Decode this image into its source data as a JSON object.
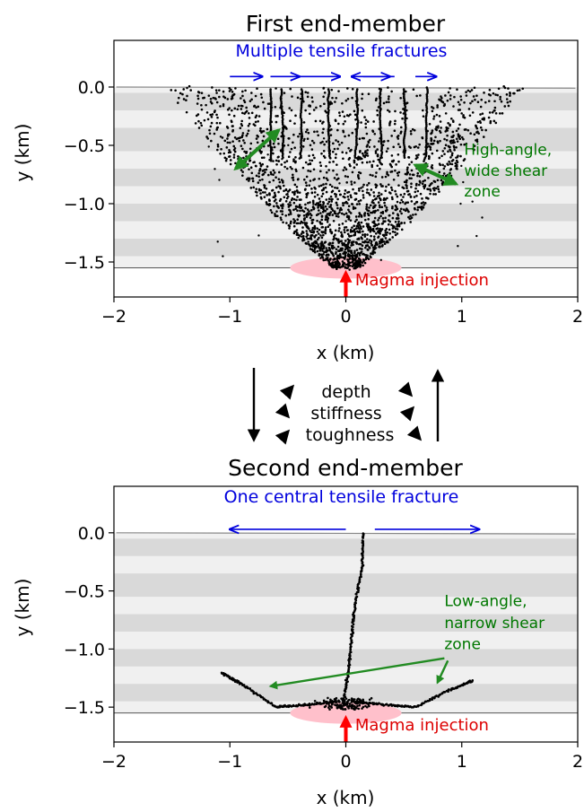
{
  "chart_data": [
    {
      "type": "scatter",
      "title": "First end-member",
      "xlabel": "x (km)",
      "ylabel": "y (km)",
      "xlim": [
        -2,
        2
      ],
      "ylim": [
        -1.8,
        0.4
      ],
      "x_ticks": [
        -2,
        -1,
        0,
        1,
        2
      ],
      "x_tick_labels": [
        "−2",
        "−1",
        "0",
        "1",
        "2"
      ],
      "y_ticks": [
        0.0,
        -0.5,
        -1.0,
        -1.5
      ],
      "y_tick_labels": [
        "0.0",
        "−0.5",
        "−1.0",
        "−1.5"
      ],
      "grid": false,
      "surface_y": 0.0,
      "base_y": -1.55,
      "layer_bands": [
        [
          -0.05,
          -0.2
        ],
        [
          -0.35,
          -0.55
        ],
        [
          -0.7,
          -0.85
        ],
        [
          -1.0,
          -1.15
        ],
        [
          -1.3,
          -1.45
        ]
      ],
      "fracture_tips_x": [
        -0.65,
        -0.55,
        -0.38,
        -0.15,
        0.1,
        0.3,
        0.5,
        0.7
      ],
      "shear_zone": {
        "inner_half_width": 0.1,
        "outer_half_width": 1.55,
        "dip": "high-angle"
      },
      "injection_x": 0.0,
      "annotations": [
        {
          "text": "Multiple tensile fractures",
          "color": "#0000dd",
          "x": -0.15,
          "y": 0.26
        },
        {
          "text": "High-angle,",
          "color": "#007700",
          "x": 1.02,
          "y": -0.58
        },
        {
          "text": "wide shear",
          "color": "#007700",
          "x": 1.02,
          "y": -0.76
        },
        {
          "text": "zone",
          "color": "#007700",
          "x": 1.02,
          "y": -0.94
        },
        {
          "text": "Magma injection",
          "color": "#dd0000",
          "x": 0.08,
          "y": -1.7
        }
      ]
    },
    {
      "type": "scatter",
      "title": "Second end-member",
      "xlabel": "x (km)",
      "ylabel": "y (km)",
      "xlim": [
        -2,
        2
      ],
      "ylim": [
        -1.8,
        0.4
      ],
      "x_ticks": [
        -2,
        -1,
        0,
        1,
        2
      ],
      "x_tick_labels": [
        "−2",
        "−1",
        "0",
        "1",
        "2"
      ],
      "y_ticks": [
        0.0,
        -0.5,
        -1.0,
        -1.5
      ],
      "y_tick_labels": [
        "0.0",
        "−0.5",
        "−1.0",
        "−1.5"
      ],
      "grid": false,
      "surface_y": 0.0,
      "base_y": -1.55,
      "layer_bands": [
        [
          -0.05,
          -0.2
        ],
        [
          -0.35,
          -0.55
        ],
        [
          -0.7,
          -0.85
        ],
        [
          -1.0,
          -1.15
        ],
        [
          -1.3,
          -1.45
        ]
      ],
      "central_fracture": [
        [
          0.15,
          0.0
        ],
        [
          0.14,
          -0.3
        ],
        [
          0.08,
          -0.6
        ],
        [
          0.05,
          -0.9
        ],
        [
          0.02,
          -1.2
        ],
        [
          -0.02,
          -1.45
        ]
      ],
      "shear_left": [
        [
          -0.05,
          -1.45
        ],
        [
          -0.35,
          -1.48
        ],
        [
          -0.6,
          -1.5
        ],
        [
          -0.9,
          -1.3
        ],
        [
          -1.08,
          -1.2
        ]
      ],
      "shear_right": [
        [
          0.05,
          -1.45
        ],
        [
          0.35,
          -1.48
        ],
        [
          0.6,
          -1.5
        ],
        [
          0.9,
          -1.35
        ],
        [
          1.1,
          -1.27
        ]
      ],
      "injection_x": 0.0,
      "annotations": [
        {
          "text": "One central tensile fracture",
          "color": "#0000dd",
          "x": -0.15,
          "y": 0.26
        },
        {
          "text": "Low-angle,",
          "color": "#007700",
          "x": 0.85,
          "y": -0.63
        },
        {
          "text": "narrow shear",
          "color": "#007700",
          "x": 0.85,
          "y": -0.82
        },
        {
          "text": "zone",
          "color": "#007700",
          "x": 0.85,
          "y": -1.0
        },
        {
          "text": "Magma injection",
          "color": "#dd0000",
          "x": 0.08,
          "y": -1.7
        }
      ]
    }
  ],
  "transition": {
    "labels": [
      "depth",
      "stiffness",
      "toughness"
    ]
  },
  "colors": {
    "points": "#000000",
    "band": "#d9d9d9",
    "band_light": "#f0f0f0",
    "magma": "#ffc0cb",
    "tensile_arrow": "#0000dd",
    "shear_arrow": "#228b22",
    "injection_arrow": "#ff0000"
  }
}
